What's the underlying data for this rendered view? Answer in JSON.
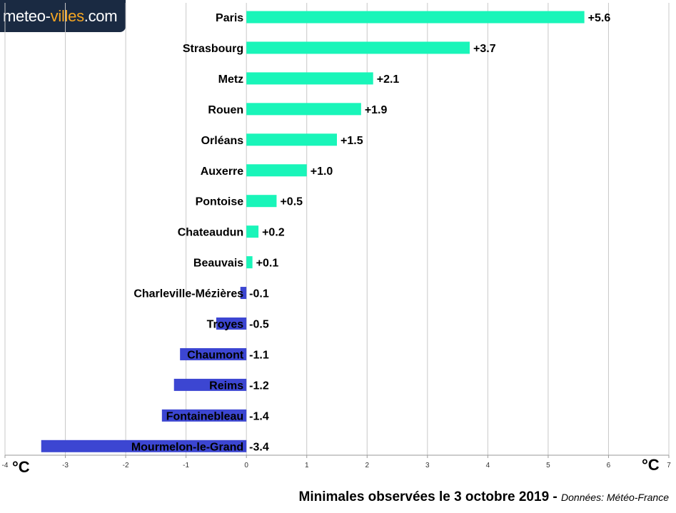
{
  "brand": {
    "logo_main": "meteo-",
    "logo_accent": "villes",
    "logo_tld": ".com"
  },
  "caption": {
    "title": "Minimales observées le 3 octobre 2019 - ",
    "source": "Données: Météo-France"
  },
  "colors": {
    "positive": "#19f5b9",
    "negative": "#3c46d2",
    "grid": "#c8c8c8"
  },
  "chart_data": {
    "type": "bar",
    "orientation": "horizontal",
    "categories": [
      "Paris",
      "Strasbourg",
      "Metz",
      "Rouen",
      "Orléans",
      "Auxerre",
      "Pontoise",
      "Chateaudun",
      "Beauvais",
      "Charleville-Mézières",
      "Troyes",
      "Chaumont",
      "Reims",
      "Fontainebleau",
      "Mourmelon-le-Grand"
    ],
    "values": [
      5.6,
      3.7,
      2.1,
      1.9,
      1.5,
      1.0,
      0.5,
      0.2,
      0.1,
      -0.1,
      -0.5,
      -1.1,
      -1.2,
      -1.4,
      -3.4
    ],
    "value_labels": [
      "+5.6",
      "+3.7",
      "+2.1",
      "+1.9",
      "+1.5",
      "+1.0",
      "+0.5",
      "+0.2",
      "+0.1",
      "-0.1",
      "-0.5",
      "-1.1",
      "-1.2",
      "-1.4",
      "-3.4"
    ],
    "xlim": [
      -4,
      7
    ],
    "xticks": [
      "-4",
      "-3",
      "-2",
      "-1",
      "0",
      "1",
      "2",
      "3",
      "4",
      "5",
      "6",
      "7"
    ],
    "xlabel_left": "°C",
    "xlabel_right": "°C",
    "grid": true
  }
}
